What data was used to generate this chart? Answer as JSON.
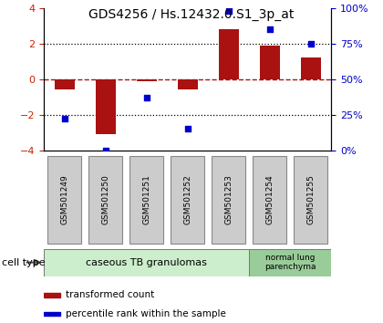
{
  "title": "GDS4256 / Hs.12432.0.S1_3p_at",
  "samples": [
    "GSM501249",
    "GSM501250",
    "GSM501251",
    "GSM501252",
    "GSM501253",
    "GSM501254",
    "GSM501255"
  ],
  "transformed_counts": [
    -0.6,
    -3.1,
    -0.1,
    -0.6,
    2.8,
    1.9,
    1.2
  ],
  "percentile_ranks": [
    22,
    0,
    37,
    15,
    98,
    85,
    75
  ],
  "ylim_left": [
    -4,
    4
  ],
  "ylim_right": [
    0,
    100
  ],
  "yticks_left": [
    -4,
    -2,
    0,
    2,
    4
  ],
  "yticks_right": [
    0,
    25,
    50,
    75,
    100
  ],
  "yticklabels_right": [
    "0%",
    "25%",
    "50%",
    "75%",
    "100%"
  ],
  "bar_color": "#aa1111",
  "dot_color": "#0000cc",
  "dotted_lines": [
    -2,
    2
  ],
  "n_group1": 5,
  "n_group2": 2,
  "group1_label": "caseous TB granulomas",
  "group2_label": "normal lung\nparenchyma",
  "group1_color": "#cceecc",
  "group2_color": "#99cc99",
  "cell_type_label": "cell type",
  "legend_bar_label": "transformed count",
  "legend_dot_label": "percentile rank within the sample",
  "tick_label_color_left": "#cc2200",
  "tick_label_color_right": "#0000cc",
  "bg_color": "#ffffff",
  "sample_box_color": "#cccccc",
  "sample_box_edge": "#888888"
}
